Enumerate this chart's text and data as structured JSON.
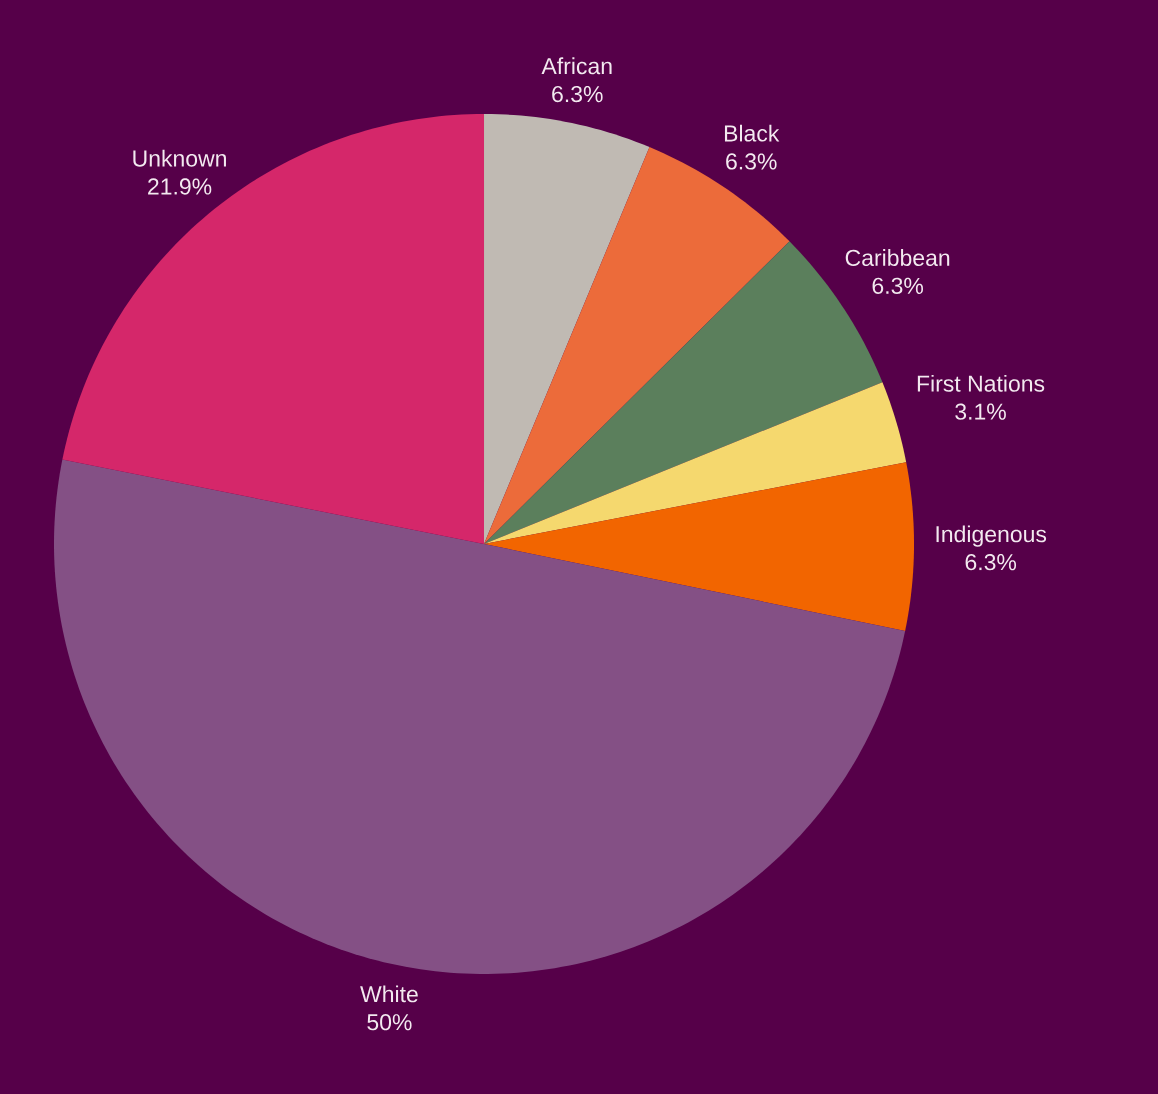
{
  "chart_data": {
    "type": "pie",
    "categories": [
      "African",
      "Black",
      "Caribbean",
      "First Nations",
      "Indigenous",
      "White",
      "Unknown"
    ],
    "values": [
      6.3,
      6.3,
      6.3,
      3.1,
      6.3,
      50,
      21.9
    ],
    "value_labels": [
      "6.3%",
      "6.3%",
      "6.3%",
      "3.1%",
      "6.3%",
      "50%",
      "21.9%"
    ],
    "colors": [
      "#c0bab3",
      "#ec6b3a",
      "#5b7f5c",
      "#f5d86e",
      "#f26500",
      "#845085",
      "#d5276a"
    ]
  }
}
